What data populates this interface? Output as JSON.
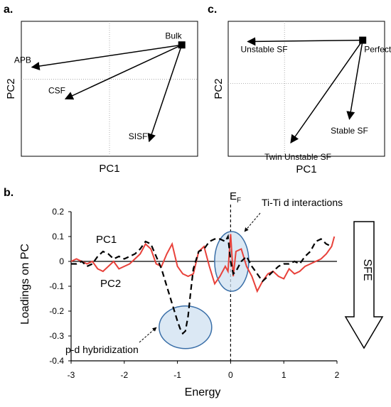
{
  "panel_labels": {
    "a": "a.",
    "b": "b.",
    "c": "c."
  },
  "chart_data": [
    {
      "panel": "a",
      "type": "scatter",
      "xlabel": "PC1",
      "ylabel": "PC2",
      "xlim": [
        -1,
        1
      ],
      "ylim": [
        -1,
        1
      ],
      "origin_label": "Bulk",
      "origin": [
        0.82,
        0.65
      ],
      "vectors": [
        {
          "label": "APB",
          "end": [
            -0.88,
            0.32
          ]
        },
        {
          "label": "CSF",
          "end": [
            -0.5,
            -0.15
          ]
        },
        {
          "label": "SISF",
          "end": [
            0.45,
            -0.78
          ]
        }
      ]
    },
    {
      "panel": "c",
      "type": "scatter",
      "xlabel": "PC1",
      "ylabel": "PC2",
      "xlim": [
        -1,
        1
      ],
      "ylim": [
        -1,
        1
      ],
      "origin_label": "Perfect",
      "origin": [
        0.72,
        0.72
      ],
      "vectors": [
        {
          "label": "Unstable SF",
          "end": [
            -0.75,
            0.7
          ]
        },
        {
          "label": "Stable SF",
          "end": [
            0.55,
            -0.45
          ]
        },
        {
          "label": "Twin Unstable SF",
          "end": [
            -0.2,
            -0.8
          ]
        }
      ]
    },
    {
      "panel": "b",
      "type": "line",
      "xlabel": "Energy",
      "ylabel": "Loadings on PC",
      "xlim": [
        -3,
        2
      ],
      "ylim": [
        -0.4,
        0.2
      ],
      "xticks": [
        "-3",
        "-2",
        "-1",
        "0",
        "1",
        "2"
      ],
      "yticks": [
        "0.2",
        "0.1",
        "0",
        "-0.1",
        "-0.2",
        "-0.3",
        "-0.4"
      ],
      "fermi_label": "E",
      "fermi_sub": "F",
      "fermi_x": 0,
      "series": [
        {
          "name": "PC1",
          "color": "#000000",
          "style": "dashed",
          "x": [
            -3,
            -2.9,
            -2.8,
            -2.7,
            -2.6,
            -2.5,
            -2.4,
            -2.3,
            -2.2,
            -2.1,
            -2.0,
            -1.9,
            -1.8,
            -1.7,
            -1.6,
            -1.5,
            -1.4,
            -1.3,
            -1.2,
            -1.1,
            -1.0,
            -0.95,
            -0.9,
            -0.85,
            -0.8,
            -0.75,
            -0.7,
            -0.6,
            -0.5,
            -0.4,
            -0.3,
            -0.2,
            -0.1,
            -0.05,
            0.0,
            0.05,
            0.1,
            0.2,
            0.3,
            0.4,
            0.5,
            0.6,
            0.7,
            0.8,
            0.9,
            1.0,
            1.1,
            1.2,
            1.3,
            1.4,
            1.5,
            1.6,
            1.7,
            1.8,
            1.9
          ],
          "values": [
            -0.01,
            -0.01,
            0.0,
            -0.02,
            -0.01,
            0.02,
            0.04,
            0.03,
            0.01,
            0.02,
            0.01,
            0.02,
            0.03,
            0.05,
            0.08,
            0.07,
            0.02,
            -0.03,
            -0.1,
            -0.17,
            -0.24,
            -0.27,
            -0.29,
            -0.28,
            -0.22,
            -0.12,
            -0.03,
            0.04,
            0.05,
            0.08,
            0.09,
            0.09,
            0.08,
            0.1,
            0.0,
            -0.05,
            -0.04,
            0.0,
            0.02,
            -0.02,
            -0.05,
            -0.08,
            -0.06,
            -0.04,
            -0.02,
            -0.01,
            -0.01,
            0.0,
            -0.01,
            0.02,
            0.04,
            0.08,
            0.09,
            0.07,
            0.06
          ]
        },
        {
          "name": "PC2",
          "color": "#e8413a",
          "style": "solid",
          "x": [
            -3,
            -2.9,
            -2.8,
            -2.7,
            -2.6,
            -2.5,
            -2.4,
            -2.3,
            -2.2,
            -2.1,
            -2.0,
            -1.9,
            -1.8,
            -1.7,
            -1.6,
            -1.5,
            -1.4,
            -1.3,
            -1.2,
            -1.1,
            -1.0,
            -0.9,
            -0.8,
            -0.7,
            -0.6,
            -0.5,
            -0.4,
            -0.3,
            -0.2,
            -0.1,
            -0.05,
            0.0,
            0.05,
            0.1,
            0.2,
            0.3,
            0.4,
            0.5,
            0.6,
            0.7,
            0.8,
            0.9,
            1.0,
            1.1,
            1.2,
            1.3,
            1.4,
            1.5,
            1.6,
            1.7,
            1.8,
            1.9,
            1.95
          ],
          "values": [
            0.0,
            0.01,
            0.0,
            -0.01,
            0.0,
            -0.03,
            -0.04,
            -0.02,
            0.0,
            -0.03,
            -0.02,
            -0.01,
            0.01,
            0.03,
            0.07,
            0.05,
            -0.01,
            -0.02,
            0.03,
            0.07,
            -0.02,
            -0.05,
            -0.06,
            -0.05,
            0.04,
            0.06,
            -0.02,
            -0.09,
            -0.06,
            -0.02,
            -0.04,
            0.11,
            -0.06,
            0.04,
            0.05,
            -0.02,
            -0.06,
            -0.12,
            -0.08,
            -0.05,
            -0.04,
            -0.06,
            -0.07,
            -0.03,
            -0.05,
            -0.04,
            -0.02,
            -0.01,
            0.0,
            0.01,
            0.03,
            0.06,
            0.1
          ]
        }
      ],
      "annotations": {
        "tiTi": "Ti-Ti d interactions",
        "pd": "p-d hybridization",
        "sfe": "SFE"
      }
    }
  ]
}
